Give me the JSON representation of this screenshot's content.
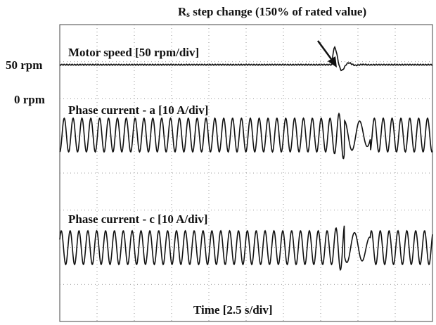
{
  "annotation": {
    "main": "R",
    "subscript": "s",
    "rest": " step change (150% of rated value)"
  },
  "left_labels": [
    "50 rpm",
    "0 rpm"
  ],
  "traces": [
    "Motor speed [50 rpm/div]",
    "Phase current - a [10 A/div]",
    "Phase current - c [10 A/div]"
  ],
  "x_label": "Time [2.5 s/div]"
}
